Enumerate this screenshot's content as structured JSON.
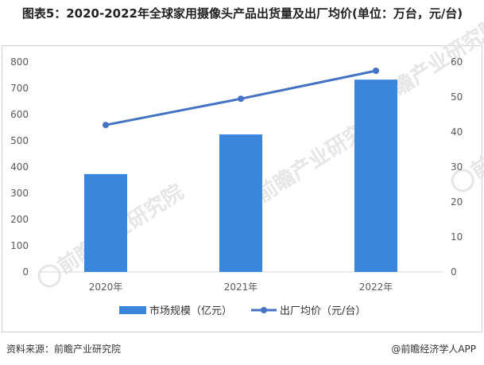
{
  "title": "图表5：2020-2022年全球家用摄像头产品出货量及出厂均价(单位：万台，元/台)",
  "footer": {
    "source": "资料来源：前瞻产业研究院",
    "brand": "@前瞻经济学人APP"
  },
  "watermark": {
    "text": "前瞻产业研究院"
  },
  "colors": {
    "bar": "#3a86dd",
    "line": "#4472c4",
    "axis_text": "#595959",
    "axis_line": "#d9d9d9",
    "watermark": "#e6e6e6"
  },
  "chart_data": {
    "type": "bar",
    "categories": [
      "2020年",
      "2021年",
      "2022年"
    ],
    "series": [
      {
        "name": "市场规模（亿元）",
        "type": "bar",
        "axis": "left",
        "values": [
          373,
          524,
          733
        ]
      },
      {
        "name": "出厂均价（元/台）",
        "type": "line",
        "axis": "right",
        "values": [
          42,
          49.5,
          57.5
        ]
      }
    ],
    "y_left": {
      "ylim": [
        0,
        800
      ],
      "ticks": [
        0,
        100,
        200,
        300,
        400,
        500,
        600,
        700,
        800
      ]
    },
    "y_right": {
      "ylim": [
        0,
        60
      ],
      "ticks": [
        0,
        10,
        20,
        30,
        40,
        50,
        60
      ]
    },
    "grid": false,
    "legend": "bottom"
  }
}
